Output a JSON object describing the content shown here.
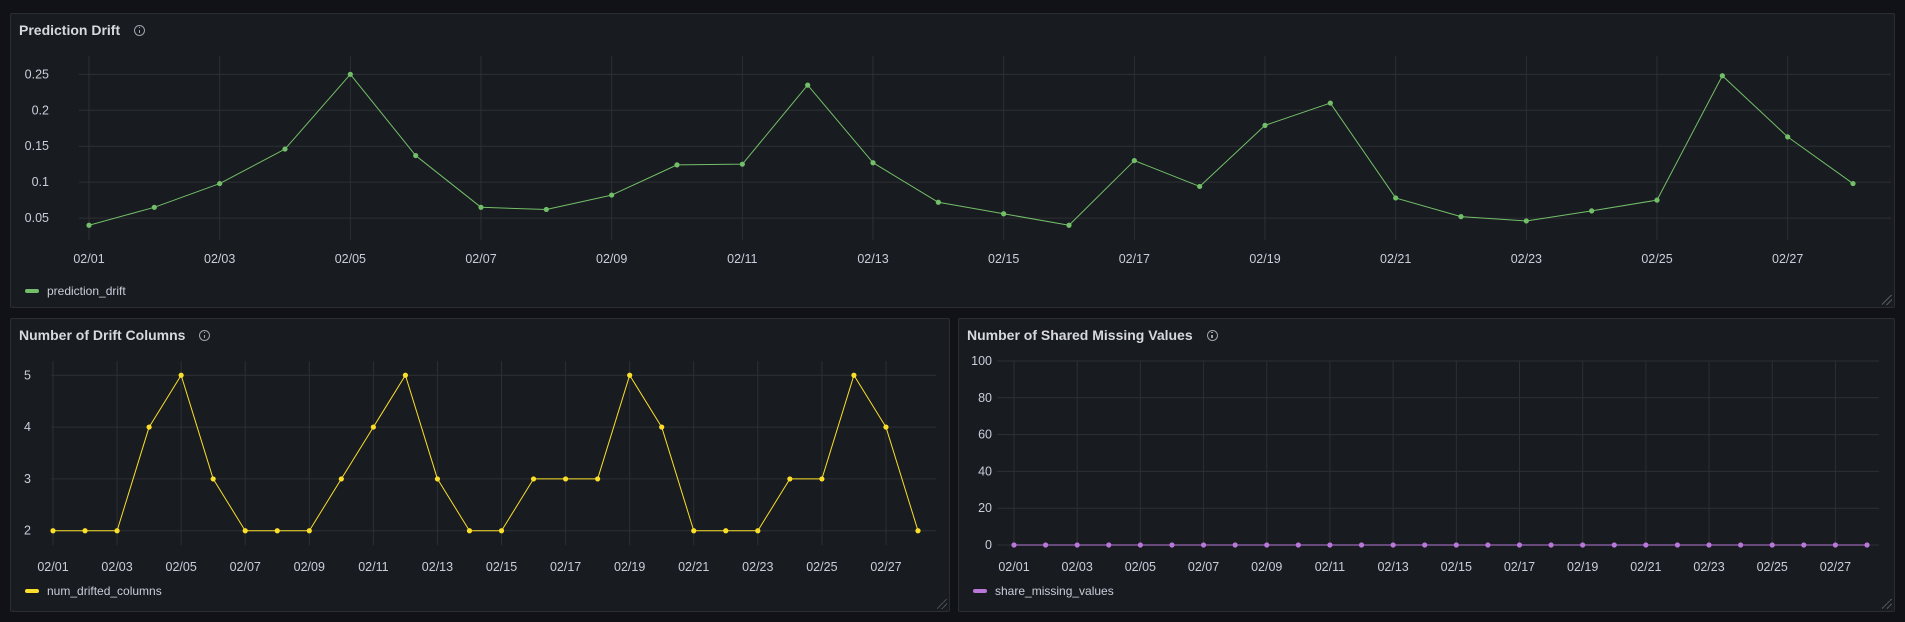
{
  "panels": {
    "p1": {
      "title": "Prediction Drift",
      "legend": "prediction_drift",
      "color": "#73bf69"
    },
    "p2": {
      "title": "Number of Drift Columns",
      "legend": "num_drifted_columns",
      "color": "#fade2a"
    },
    "p3": {
      "title": "Number of Shared Missing Values",
      "legend": "share_missing_values",
      "color": "#b877d9"
    }
  },
  "chart_data": [
    {
      "type": "line",
      "title": "Prediction Drift",
      "x": [
        "02/01",
        "02/02",
        "02/03",
        "02/04",
        "02/05",
        "02/06",
        "02/07",
        "02/08",
        "02/09",
        "02/10",
        "02/11",
        "02/12",
        "02/13",
        "02/14",
        "02/15",
        "02/16",
        "02/17",
        "02/18",
        "02/19",
        "02/20",
        "02/21",
        "02/22",
        "02/23",
        "02/24",
        "02/25",
        "02/26",
        "02/27",
        "02/28"
      ],
      "x_tick_labels": [
        "02/01",
        "02/03",
        "02/05",
        "02/07",
        "02/09",
        "02/11",
        "02/13",
        "02/15",
        "02/17",
        "02/19",
        "02/21",
        "02/23",
        "02/25",
        "02/27"
      ],
      "series": [
        {
          "name": "prediction_drift",
          "values": [
            0.04,
            0.065,
            0.098,
            0.146,
            0.25,
            0.137,
            0.065,
            0.062,
            0.082,
            0.124,
            0.125,
            0.235,
            0.127,
            0.072,
            0.056,
            0.04,
            0.13,
            0.094,
            0.179,
            0.21,
            0.078,
            0.052,
            0.046,
            0.06,
            0.075,
            0.248,
            0.163,
            0.098
          ]
        }
      ],
      "y_ticks": [
        0.05,
        0.1,
        0.15,
        0.2,
        0.25
      ],
      "y_tick_labels": [
        "0.05",
        "0.1",
        "0.15",
        "0.2",
        "0.25"
      ],
      "ylim": [
        0.0195,
        0.2755
      ],
      "grid": true,
      "legend": "bottom-left"
    },
    {
      "type": "line",
      "title": "Number of Drift Columns",
      "x": [
        "02/01",
        "02/02",
        "02/03",
        "02/04",
        "02/05",
        "02/06",
        "02/07",
        "02/08",
        "02/09",
        "02/10",
        "02/11",
        "02/12",
        "02/13",
        "02/14",
        "02/15",
        "02/16",
        "02/17",
        "02/18",
        "02/19",
        "02/20",
        "02/21",
        "02/22",
        "02/23",
        "02/24",
        "02/25",
        "02/26",
        "02/27",
        "02/28"
      ],
      "x_tick_labels": [
        "02/01",
        "02/03",
        "02/05",
        "02/07",
        "02/09",
        "02/11",
        "02/13",
        "02/15",
        "02/17",
        "02/19",
        "02/21",
        "02/23",
        "02/25",
        "02/27"
      ],
      "series": [
        {
          "name": "num_drifted_columns",
          "values": [
            2,
            2,
            2,
            4,
            5,
            3,
            2,
            2,
            2,
            3,
            4,
            5,
            3,
            2,
            2,
            3,
            3,
            3,
            5,
            4,
            2,
            2,
            2,
            3,
            3,
            5,
            4,
            2
          ]
        }
      ],
      "y_ticks": [
        2,
        3,
        4,
        5
      ],
      "y_tick_labels": [
        "2",
        "3",
        "4",
        "5"
      ],
      "ylim": [
        1.725,
        5.275
      ],
      "grid": true,
      "legend": "bottom-left"
    },
    {
      "type": "line",
      "title": "Number of Shared Missing Values",
      "x": [
        "02/01",
        "02/02",
        "02/03",
        "02/04",
        "02/05",
        "02/06",
        "02/07",
        "02/08",
        "02/09",
        "02/10",
        "02/11",
        "02/12",
        "02/13",
        "02/14",
        "02/15",
        "02/16",
        "02/17",
        "02/18",
        "02/19",
        "02/20",
        "02/21",
        "02/22",
        "02/23",
        "02/24",
        "02/25",
        "02/26",
        "02/27",
        "02/28"
      ],
      "x_tick_labels": [
        "02/01",
        "02/03",
        "02/05",
        "02/07",
        "02/09",
        "02/11",
        "02/13",
        "02/15",
        "02/17",
        "02/19",
        "02/21",
        "02/23",
        "02/25",
        "02/27"
      ],
      "series": [
        {
          "name": "share_missing_values",
          "values": [
            0,
            0,
            0,
            0,
            0,
            0,
            0,
            0,
            0,
            0,
            0,
            0,
            0,
            0,
            0,
            0,
            0,
            0,
            0,
            0,
            0,
            0,
            0,
            0,
            0,
            0,
            0,
            0
          ]
        }
      ],
      "y_ticks": [
        0,
        20,
        40,
        60,
        80,
        100
      ],
      "y_tick_labels": [
        "0",
        "20",
        "40",
        "60",
        "80",
        "100"
      ],
      "ylim": [
        0,
        100
      ],
      "grid": true,
      "legend": "bottom-left"
    }
  ]
}
